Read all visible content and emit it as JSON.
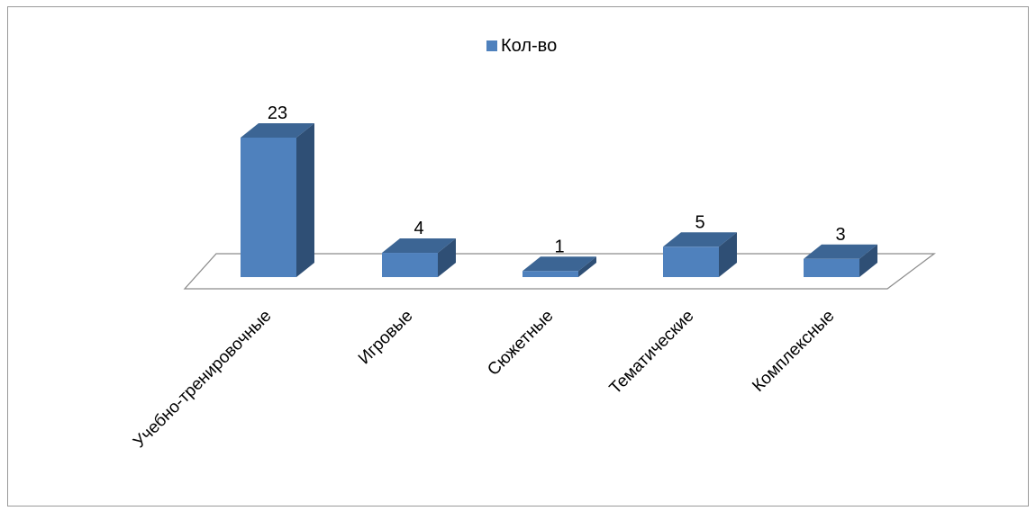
{
  "chart_data": {
    "type": "bar",
    "style": "3d-column",
    "title": "",
    "categories": [
      "Учебно-тренировочные",
      "Игровые",
      "Сюжетные",
      "Тематические",
      "Комплексные"
    ],
    "series": [
      {
        "name": "Кол-во",
        "values": [
          23,
          4,
          1,
          5,
          3
        ],
        "color": "#4f81bd",
        "side_color": "#2f4f75",
        "top_color": "#3c6594"
      }
    ],
    "data_labels": [
      "23",
      "4",
      "1",
      "5",
      "3"
    ],
    "legend_position": "top",
    "grid": false,
    "ylim": [
      0,
      23
    ]
  }
}
